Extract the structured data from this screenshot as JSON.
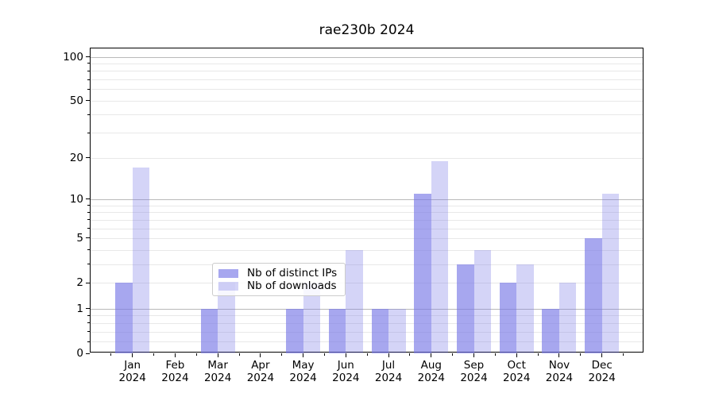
{
  "chart_data": {
    "type": "bar",
    "title": "rae230b 2024",
    "categories": [
      "Jan 2024",
      "Feb 2024",
      "Mar 2024",
      "Apr 2024",
      "May 2024",
      "Jun 2024",
      "Jul 2024",
      "Aug 2024",
      "Sep 2024",
      "Oct 2024",
      "Nov 2024",
      "Dec 2024"
    ],
    "series": [
      {
        "name": "Nb of distinct IPs",
        "color": "#7878e6",
        "alpha": 0.65,
        "values": [
          2,
          0,
          1,
          0,
          1,
          1,
          1,
          11,
          3,
          2,
          1,
          5
        ]
      },
      {
        "name": "Nb of downloads",
        "color": "#7878e6",
        "alpha": 0.32,
        "values": [
          17,
          0,
          2,
          0,
          2,
          4,
          1,
          19,
          4,
          3,
          2,
          11
        ]
      }
    ],
    "yscale": "log1p",
    "ylim": [
      0,
      113
    ],
    "yticks_labeled": [
      0,
      1,
      2,
      5,
      10,
      20,
      50,
      100
    ],
    "yticks_major_grid": [
      1,
      10,
      100
    ],
    "yticks_minor_grid": [
      0.2,
      0.4,
      0.6,
      0.8,
      2,
      3,
      4,
      5,
      6,
      7,
      8,
      9,
      20,
      30,
      40,
      50,
      60,
      70,
      80,
      90
    ],
    "grid": "horizontal",
    "legend_position": "lower center",
    "axis_color": "#000000",
    "grid_major_color": "#b9b9b9",
    "grid_minor_color": "#e8e8e8",
    "background_color": "#ffffff"
  }
}
